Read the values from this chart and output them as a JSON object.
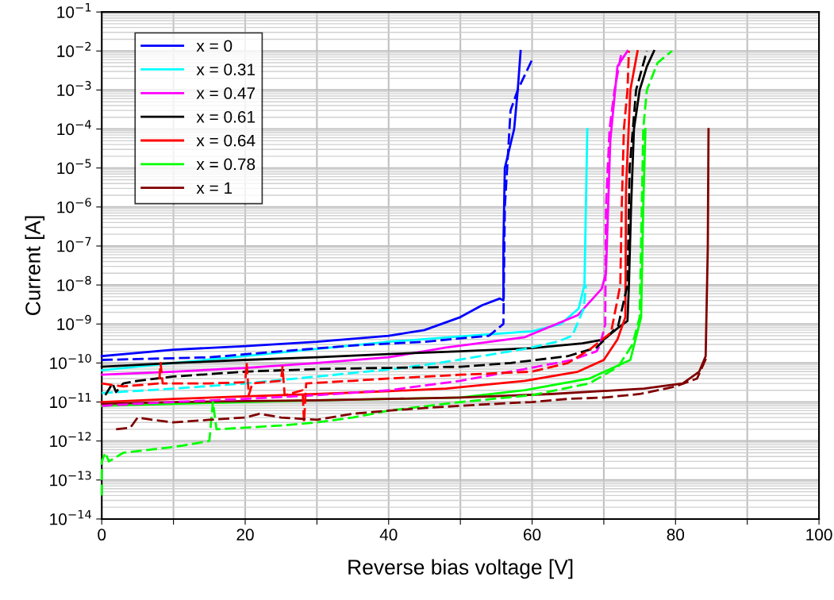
{
  "chart_data": {
    "type": "line",
    "xlabel": "Reverse bias voltage [V]",
    "ylabel": "Current [A]",
    "log": "y",
    "grid": true,
    "legend": "top left",
    "marker": "none",
    "xlim": [
      0,
      100
    ],
    "xticks": [
      0,
      {
        "value": 10,
        "label": null
      },
      20,
      {
        "value": 30,
        "label": null
      },
      40,
      {
        "value": 50,
        "label": null
      },
      60,
      {
        "value": 70,
        "label": null
      },
      80,
      {
        "value": 90,
        "label": null
      },
      100
    ],
    "ylim": [
      1e-14,
      0.1
    ],
    "yticks": [
      {
        "value": 1e-14,
        "label": "10$^{−14}$"
      },
      {
        "value": 1e-13,
        "label": "10$^{−13}$"
      },
      {
        "value": 1e-12,
        "label": "10$^{−12}$"
      },
      {
        "value": 1e-11,
        "label": "10$^{−11}$"
      },
      {
        "value": 1e-10,
        "label": "10$^{−10}$"
      },
      {
        "value": 1e-09,
        "label": "10$^{−9}$"
      },
      {
        "value": 1e-08,
        "label": "10$^{−8}$"
      },
      {
        "value": 1e-07,
        "label": "10$^{−7}$"
      },
      {
        "value": 1e-06,
        "label": "10$^{−6}$"
      },
      {
        "value": 1e-05,
        "label": "10$^{−5}$"
      },
      {
        "value": 0.0001,
        "label": "10$^{−4}$"
      },
      {
        "value": 0.001,
        "label": "10$^{−3}$"
      },
      {
        "value": 0.01,
        "label": "10$^{−2}$"
      },
      {
        "value": 0.1,
        "label": "10$^{−1}$"
      }
    ],
    "series": [
      {
        "name": "x = 0",
        "color": "#0000ff",
        "line_style": "solid",
        "x": [
          0,
          10,
          20,
          30,
          40,
          45,
          50,
          53,
          55.5,
          56,
          56,
          56.2,
          57.5,
          58,
          58.4
        ],
        "values": [
          1.5e-10,
          2.2e-10,
          2.7e-10,
          3.5e-10,
          5e-10,
          7e-10,
          1.5e-09,
          3e-09,
          4.5e-09,
          4e-09,
          1e-07,
          1e-05,
          0.0001,
          0.001,
          0.01
        ]
      },
      {
        "name": "x = 0.31",
        "color": "#00ffff",
        "line_style": "solid",
        "x": [
          0,
          10,
          20,
          30,
          40,
          50,
          60,
          64,
          66.5,
          67.3,
          67.5,
          67.7
        ],
        "values": [
          6.5e-11,
          1e-10,
          1.5e-10,
          2.3e-10,
          3.5e-10,
          4.8e-10,
          6.5e-10,
          1e-09,
          2.5e-09,
          1e-08,
          1e-06,
          0.0001
        ]
      },
      {
        "name": "x = 0.47",
        "color": "#ff00ff",
        "line_style": "solid",
        "x": [
          0,
          10,
          20,
          30,
          40,
          48,
          59,
          66.4,
          69.7,
          70.3,
          70.9,
          71.9,
          73.3
        ],
        "values": [
          5e-11,
          6e-11,
          7.5e-11,
          1e-10,
          1.4e-10,
          2.5e-10,
          4.6e-10,
          1.7e-09,
          8e-09,
          2e-08,
          5e-05,
          0.004,
          0.01
        ]
      },
      {
        "name": "x = 0.61",
        "color": "#000000",
        "line_style": "solid",
        "x": [
          0,
          10,
          20,
          30,
          40,
          50,
          60,
          67,
          70,
          72,
          73.3,
          73.5,
          73.8,
          74.2,
          75,
          76,
          77
        ],
        "values": [
          8e-11,
          1e-10,
          1.2e-10,
          1.4e-10,
          1.7e-10,
          2e-10,
          2.4e-10,
          3.2e-10,
          4e-10,
          8e-10,
          1.2e-09,
          1e-08,
          1e-06,
          0.0001,
          0.001,
          0.004,
          0.01
        ]
      },
      {
        "name": "x = 0.64",
        "color": "#ff0000",
        "line_style": "solid",
        "x": [
          0,
          10,
          20,
          30,
          40,
          48,
          59,
          66.4,
          70,
          71.9,
          73,
          73.1,
          73.7,
          74.7
        ],
        "values": [
          1e-11,
          1.2e-11,
          1.4e-11,
          1.6e-11,
          1.9e-11,
          2.2e-11,
          3.5e-11,
          6e-11,
          1.2e-10,
          4e-10,
          1.5e-09,
          3e-06,
          0.001,
          0.01
        ]
      },
      {
        "name": "x = 0.78",
        "color": "#00ff00",
        "line_style": "solid",
        "x": [
          0,
          10,
          20,
          30,
          40,
          50,
          59,
          68,
          73.7,
          75.2,
          75.5,
          75.8
        ],
        "values": [
          8e-12,
          9e-12,
          1e-11,
          1.1e-11,
          1.2e-11,
          1.3e-11,
          2e-11,
          4e-11,
          1.2e-10,
          1.5e-09,
          1e-06,
          0.0001
        ]
      },
      {
        "name": "x = 1",
        "color": "#800000",
        "line_style": "solid",
        "x": [
          0,
          10,
          20,
          30,
          40,
          50,
          62.6,
          75.6,
          81,
          83.3,
          84.2,
          84.5,
          84.6
        ],
        "values": [
          9e-12,
          1e-11,
          1.05e-11,
          1.1e-11,
          1.2e-11,
          1.3e-11,
          1.6e-11,
          2.2e-11,
          3e-11,
          6e-11,
          1.5e-10,
          1e-07,
          0.0001
        ]
      },
      {
        "color": "#0000ff",
        "line_style": "dashed",
        "x": [
          0,
          15,
          25,
          35,
          45,
          54,
          56,
          56.2,
          57,
          58,
          60
        ],
        "values": [
          1.2e-10,
          1.4e-10,
          2e-10,
          2.8e-10,
          3.5e-10,
          5e-10,
          1e-09,
          1e-06,
          0.0003,
          0.001,
          0.006
        ]
      },
      {
        "color": "#00ffff",
        "line_style": "dashed",
        "x": [
          0,
          10,
          20,
          30,
          40.6,
          47,
          59,
          63.7,
          65.6,
          67.2,
          67.5
        ],
        "values": [
          1.7e-11,
          2.2e-11,
          3e-11,
          4.5e-11,
          7e-11,
          1e-10,
          2.3e-10,
          3.6e-10,
          5e-10,
          2.5e-09,
          1e-08
        ]
      },
      {
        "color": "#ff00ff",
        "line_style": "dashed",
        "x": [
          0,
          10,
          20,
          30,
          40,
          50,
          59,
          65.6,
          69,
          69.5,
          70.2,
          70.3,
          70.8,
          71.5,
          72.5
        ],
        "values": [
          8e-12,
          1e-11,
          1.2e-11,
          1.5e-11,
          2e-11,
          3.5e-11,
          7e-11,
          1.2e-10,
          2e-10,
          3e-10,
          1e-09,
          1e-06,
          0.0001,
          0.001,
          0.01
        ]
      },
      {
        "color": "#000000",
        "line_style": "dashed",
        "x": [
          0.5,
          1.5,
          2,
          3,
          5,
          10,
          20,
          30,
          40,
          50,
          57,
          65,
          69,
          72,
          73.3,
          73.6,
          74.5,
          76
        ],
        "values": [
          1.5e-11,
          3e-11,
          1.8e-11,
          3e-11,
          3.5e-11,
          4.5e-11,
          6e-11,
          7e-11,
          7.5e-11,
          8e-11,
          1e-10,
          1.5e-10,
          2.5e-10,
          9e-10,
          1e-08,
          1e-05,
          0.001,
          0.01
        ]
      },
      {
        "color": "#ff0000",
        "line_style": "dashed",
        "x": [
          0,
          3,
          8,
          8.2,
          8.5,
          15,
          20,
          20.2,
          20.5,
          21,
          25,
          25.2,
          25.5,
          28,
          28.2,
          28.5,
          35,
          40,
          50,
          60,
          65,
          68,
          71,
          72.3,
          72.5,
          72.8,
          73.3,
          73.5
        ],
        "values": [
          3e-11,
          2.5e-11,
          3e-11,
          1e-10,
          3e-11,
          3e-11,
          3.2e-11,
          1e-10,
          1.5e-11,
          3e-11,
          3.5e-11,
          8e-11,
          1.5e-11,
          2e-11,
          3e-12,
          3e-11,
          3.5e-11,
          4e-11,
          5e-11,
          6e-11,
          1e-10,
          2.2e-10,
          6e-10,
          1e-08,
          1e-06,
          0.0001,
          0.001,
          0.01
        ]
      },
      {
        "color": "#00ff00",
        "line_style": "dashed",
        "x": [
          0,
          0,
          0.5,
          1,
          3,
          10,
          15,
          15.5,
          16,
          20,
          25,
          30,
          35,
          40,
          50,
          60,
          68,
          72,
          74,
          75,
          75.3,
          75.5,
          76,
          77.5,
          79.5
        ],
        "values": [
          4e-14,
          3e-13,
          5e-13,
          3e-13,
          5e-13,
          7e-13,
          1e-12,
          1e-11,
          2e-12,
          2.2e-12,
          2.5e-12,
          3e-12,
          4e-12,
          6e-12,
          1e-11,
          1.5e-11,
          3e-11,
          8e-11,
          3e-10,
          1.5e-09,
          1e-06,
          0.0001,
          0.001,
          0.005,
          0.01
        ]
      },
      {
        "color": "#800000",
        "line_style": "dashed",
        "x": [
          2,
          4,
          5,
          7,
          10,
          15,
          20,
          22,
          25,
          30,
          35,
          40,
          45,
          50,
          55,
          60,
          65,
          70,
          75,
          80,
          83,
          84.4
        ],
        "values": [
          2e-12,
          2.2e-12,
          4e-12,
          3.5e-12,
          3e-12,
          3.5e-12,
          4e-12,
          5e-12,
          4e-12,
          3.5e-12,
          5e-12,
          6e-12,
          7e-12,
          8e-12,
          9e-12,
          1e-11,
          1.2e-11,
          1.3e-11,
          1.6e-11,
          2.5e-11,
          4e-11,
          1.5e-10
        ]
      }
    ]
  }
}
